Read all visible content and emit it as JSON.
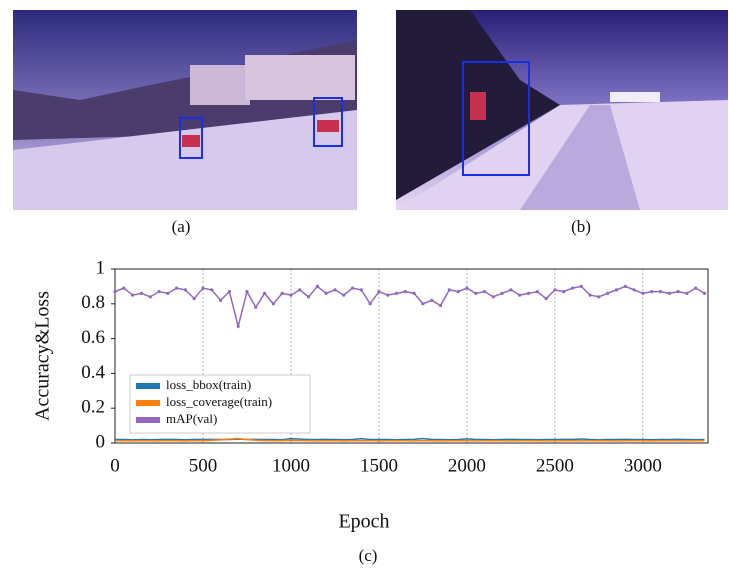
{
  "panels": [
    {
      "caption": "(a)"
    },
    {
      "caption": "(b)"
    }
  ],
  "chart_data": {
    "type": "line",
    "caption": "(c)",
    "xlabel": "Epoch",
    "ylabel": "Accuracy&Loss",
    "x": [
      0,
      50,
      100,
      150,
      200,
      250,
      300,
      350,
      400,
      450,
      500,
      550,
      600,
      650,
      700,
      750,
      800,
      850,
      900,
      950,
      1000,
      1050,
      1100,
      1150,
      1200,
      1250,
      1300,
      1350,
      1400,
      1450,
      1500,
      1550,
      1600,
      1650,
      1700,
      1750,
      1800,
      1850,
      1900,
      1950,
      2000,
      2050,
      2100,
      2150,
      2200,
      2250,
      2300,
      2350,
      2400,
      2450,
      2500,
      2550,
      2600,
      2650,
      2700,
      2750,
      2800,
      2850,
      2900,
      2950,
      3000,
      3050,
      3100,
      3150,
      3200,
      3250,
      3300,
      3350
    ],
    "series": [
      {
        "name": "loss_bbox(train)",
        "color": "#1f77b4",
        "values": [
          0.02,
          0.02,
          0.018,
          0.02,
          0.019,
          0.02,
          0.021,
          0.02,
          0.019,
          0.02,
          0.02,
          0.021,
          0.02,
          0.02,
          0.022,
          0.02,
          0.021,
          0.02,
          0.02,
          0.019,
          0.025,
          0.022,
          0.02,
          0.02,
          0.021,
          0.02,
          0.019,
          0.02,
          0.025,
          0.02,
          0.02,
          0.02,
          0.019,
          0.02,
          0.021,
          0.026,
          0.02,
          0.02,
          0.019,
          0.02,
          0.024,
          0.02,
          0.02,
          0.019,
          0.02,
          0.021,
          0.02,
          0.02,
          0.019,
          0.02,
          0.02,
          0.021,
          0.02,
          0.023,
          0.02,
          0.019,
          0.02,
          0.02,
          0.021,
          0.02,
          0.02,
          0.019,
          0.02,
          0.02,
          0.021,
          0.02,
          0.019,
          0.02
        ]
      },
      {
        "name": "loss_coverage(train)",
        "color": "#ff7f0e",
        "values": [
          0.014,
          0.013,
          0.012,
          0.014,
          0.013,
          0.012,
          0.014,
          0.013,
          0.012,
          0.013,
          0.014,
          0.016,
          0.018,
          0.022,
          0.025,
          0.02,
          0.016,
          0.014,
          0.013,
          0.014,
          0.015,
          0.014,
          0.013,
          0.012,
          0.014,
          0.013,
          0.012,
          0.013,
          0.014,
          0.013,
          0.012,
          0.013,
          0.014,
          0.013,
          0.012,
          0.014,
          0.013,
          0.012,
          0.013,
          0.014,
          0.013,
          0.012,
          0.013,
          0.014,
          0.013,
          0.012,
          0.013,
          0.014,
          0.013,
          0.012,
          0.013,
          0.014,
          0.013,
          0.012,
          0.013,
          0.014,
          0.013,
          0.012,
          0.013,
          0.014,
          0.013,
          0.012,
          0.013,
          0.014,
          0.013,
          0.012,
          0.013,
          0.014
        ]
      },
      {
        "name": "mAP(val)",
        "color": "#9467bd",
        "values": [
          0.87,
          0.89,
          0.85,
          0.86,
          0.84,
          0.87,
          0.86,
          0.89,
          0.88,
          0.83,
          0.89,
          0.88,
          0.82,
          0.87,
          0.67,
          0.87,
          0.78,
          0.86,
          0.8,
          0.86,
          0.85,
          0.88,
          0.84,
          0.9,
          0.86,
          0.88,
          0.85,
          0.89,
          0.88,
          0.8,
          0.87,
          0.85,
          0.86,
          0.87,
          0.86,
          0.8,
          0.82,
          0.79,
          0.88,
          0.87,
          0.89,
          0.86,
          0.87,
          0.84,
          0.86,
          0.88,
          0.85,
          0.86,
          0.87,
          0.83,
          0.88,
          0.87,
          0.89,
          0.9,
          0.85,
          0.84,
          0.86,
          0.88,
          0.9,
          0.88,
          0.86,
          0.87,
          0.87,
          0.86,
          0.87,
          0.86,
          0.89,
          0.86
        ]
      }
    ],
    "xlim": [
      0,
      3370
    ],
    "ylim": [
      0,
      1
    ],
    "xticks": [
      0,
      500,
      1000,
      1500,
      2000,
      2500,
      3000
    ],
    "yticks": [
      0,
      0.2,
      0.4,
      0.6,
      0.8,
      1
    ],
    "grid": "x",
    "legend": "lower left"
  }
}
